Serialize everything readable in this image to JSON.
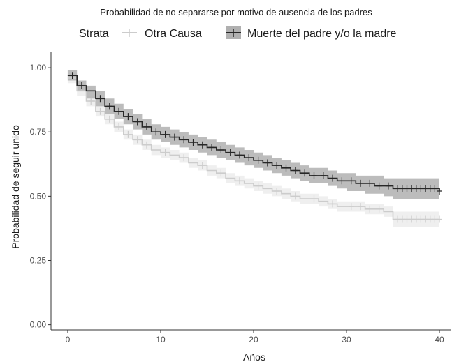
{
  "chart_data": {
    "type": "line",
    "step": true,
    "title": "Probabilidad de no separarse por motivo de ausencia de los padres",
    "legend": {
      "title": "Strata",
      "position": "top"
    },
    "xlabel": "Años",
    "ylabel": "Probabilidad de seguir unido",
    "xlim": [
      -1.8,
      41.2
    ],
    "ylim": [
      -0.02,
      1.06
    ],
    "x_ticks": [
      0,
      10,
      20,
      30,
      40
    ],
    "x_tick_labels": [
      "0",
      "10",
      "20",
      "30",
      "40"
    ],
    "y_ticks": [
      0.0,
      0.25,
      0.5,
      0.75,
      1.0
    ],
    "y_tick_labels": [
      "0.00",
      "0.25",
      "0.50",
      "0.75",
      "1.00"
    ],
    "grid": false,
    "series": [
      {
        "name": "Otra Causa",
        "color": "#cccccc",
        "band_color": "#ececec",
        "x": [
          0,
          1,
          2,
          3,
          4,
          5,
          6,
          7,
          8,
          9,
          10,
          11,
          12,
          13,
          14,
          15,
          16,
          17,
          18,
          19,
          20,
          21,
          22,
          23,
          24,
          25,
          26,
          27,
          28,
          29,
          30,
          31,
          32,
          33,
          34,
          35,
          40
        ],
        "y": [
          0.96,
          0.91,
          0.87,
          0.83,
          0.8,
          0.77,
          0.74,
          0.72,
          0.7,
          0.68,
          0.67,
          0.66,
          0.65,
          0.63,
          0.62,
          0.6,
          0.59,
          0.57,
          0.56,
          0.55,
          0.54,
          0.53,
          0.52,
          0.51,
          0.5,
          0.49,
          0.49,
          0.48,
          0.47,
          0.46,
          0.46,
          0.46,
          0.45,
          0.45,
          0.44,
          0.41,
          0.41
        ],
        "lower": [
          0.94,
          0.89,
          0.85,
          0.81,
          0.78,
          0.75,
          0.72,
          0.7,
          0.68,
          0.66,
          0.65,
          0.64,
          0.63,
          0.61,
          0.6,
          0.58,
          0.57,
          0.55,
          0.54,
          0.53,
          0.52,
          0.51,
          0.5,
          0.49,
          0.48,
          0.47,
          0.47,
          0.46,
          0.45,
          0.44,
          0.44,
          0.44,
          0.43,
          0.43,
          0.42,
          0.38,
          0.38
        ],
        "upper": [
          0.98,
          0.93,
          0.89,
          0.85,
          0.82,
          0.79,
          0.76,
          0.74,
          0.72,
          0.7,
          0.69,
          0.68,
          0.67,
          0.65,
          0.64,
          0.62,
          0.61,
          0.59,
          0.58,
          0.57,
          0.56,
          0.55,
          0.54,
          0.53,
          0.52,
          0.51,
          0.51,
          0.5,
          0.49,
          0.48,
          0.48,
          0.48,
          0.47,
          0.47,
          0.46,
          0.44,
          0.44
        ],
        "censor_x": [
          2.5,
          3.5,
          4.5,
          5.5,
          6.5,
          7.5,
          8.5,
          10.5,
          12.5,
          14.5,
          16.5,
          18.5,
          20.5,
          22.5,
          24.5,
          26.5,
          28.5,
          30.5,
          31.5,
          32.5,
          33.5,
          35.5,
          36.0,
          36.5,
          37.0,
          37.5,
          38.0,
          38.5,
          39.0,
          39.5,
          40.0
        ]
      },
      {
        "name": "Muerte del padre y/o la madre",
        "color": "#262626",
        "band_color": "#b0b0b0",
        "x": [
          0,
          1,
          2,
          3,
          4,
          5,
          6,
          7,
          8,
          9,
          10,
          11,
          12,
          13,
          14,
          15,
          16,
          17,
          18,
          19,
          20,
          21,
          22,
          23,
          24,
          25,
          26,
          27,
          28,
          29,
          30,
          31,
          32,
          33,
          34,
          35,
          40
        ],
        "y": [
          0.97,
          0.93,
          0.91,
          0.88,
          0.85,
          0.83,
          0.81,
          0.79,
          0.77,
          0.75,
          0.74,
          0.73,
          0.72,
          0.71,
          0.7,
          0.69,
          0.68,
          0.67,
          0.66,
          0.65,
          0.64,
          0.63,
          0.62,
          0.61,
          0.6,
          0.59,
          0.58,
          0.58,
          0.57,
          0.56,
          0.56,
          0.55,
          0.55,
          0.54,
          0.54,
          0.53,
          0.52
        ],
        "lower": [
          0.95,
          0.91,
          0.88,
          0.85,
          0.82,
          0.8,
          0.78,
          0.76,
          0.74,
          0.72,
          0.71,
          0.7,
          0.69,
          0.68,
          0.67,
          0.66,
          0.65,
          0.64,
          0.63,
          0.62,
          0.61,
          0.6,
          0.59,
          0.58,
          0.57,
          0.56,
          0.55,
          0.55,
          0.54,
          0.53,
          0.52,
          0.52,
          0.51,
          0.51,
          0.5,
          0.49,
          0.49
        ],
        "upper": [
          0.99,
          0.95,
          0.93,
          0.91,
          0.88,
          0.86,
          0.84,
          0.82,
          0.8,
          0.78,
          0.77,
          0.76,
          0.75,
          0.74,
          0.73,
          0.72,
          0.71,
          0.7,
          0.69,
          0.68,
          0.67,
          0.66,
          0.65,
          0.64,
          0.63,
          0.62,
          0.61,
          0.61,
          0.6,
          0.59,
          0.59,
          0.58,
          0.58,
          0.58,
          0.57,
          0.57,
          0.57
        ],
        "censor_x": [
          0.5,
          1.5,
          3.5,
          4.5,
          5.5,
          6.5,
          7.5,
          8.5,
          9.5,
          10.5,
          11.5,
          12.5,
          13.5,
          14.5,
          15.5,
          16.5,
          17.5,
          18.5,
          19.5,
          20.5,
          21.5,
          22.5,
          23.5,
          24.5,
          25.5,
          26.5,
          27.5,
          28.5,
          29.5,
          30.5,
          31.5,
          32.5,
          33.5,
          34.5,
          35.5,
          36.0,
          36.5,
          37.0,
          37.5,
          38.0,
          38.5,
          39.0,
          39.5,
          40.0
        ]
      }
    ]
  }
}
